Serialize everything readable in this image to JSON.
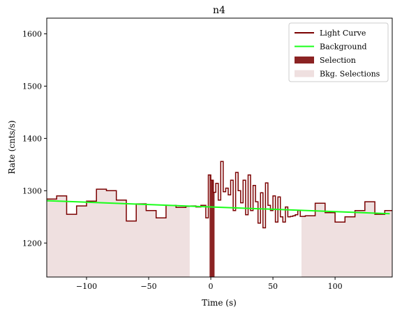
{
  "chart_data": {
    "type": "line",
    "title": "n4",
    "xlabel": "Time (s)",
    "ylabel": "Rate (cnts/s)",
    "xlim": [
      -132,
      146
    ],
    "ylim": [
      1135,
      1630
    ],
    "xticks": [
      -100,
      -50,
      0,
      50,
      100
    ],
    "xtick_labels": [
      "−100",
      "−50",
      "0",
      "50",
      "100"
    ],
    "yticks": [
      1200,
      1300,
      1400,
      1500,
      1600
    ],
    "ytick_labels": [
      "1200",
      "1300",
      "1400",
      "1500",
      "1600"
    ],
    "grid": false,
    "legend_position": "top-right",
    "legend": [
      {
        "label": "Light Curve",
        "kind": "line",
        "color": "#7a0000"
      },
      {
        "label": "Background",
        "kind": "line",
        "color": "#19ff19"
      },
      {
        "label": "Selection",
        "kind": "patch",
        "color": "#8b2323"
      },
      {
        "label": "Bkg. Selections",
        "kind": "patch",
        "color": "#efe0e0"
      }
    ],
    "colors": {
      "light_curve": "#7a0000",
      "background": "#19ff19",
      "selection": "#8b2323",
      "bkg_selection": "#efe0e0"
    },
    "light_curve": {
      "edges": [
        -132,
        -124,
        -116,
        -108,
        -100,
        -92,
        -84,
        -76,
        -68,
        -60,
        -52,
        -44,
        -36,
        -28,
        -20,
        -16,
        -12,
        -8,
        -4,
        -2,
        0,
        2,
        4,
        6,
        8,
        10,
        12,
        14,
        16,
        18,
        20,
        22,
        24,
        26,
        28,
        30,
        32,
        34,
        36,
        38,
        40,
        42,
        44,
        46,
        48,
        50,
        52,
        54,
        56,
        58,
        60,
        62,
        64,
        66,
        68,
        70,
        72,
        76,
        84,
        92,
        100,
        108,
        116,
        124,
        132,
        140,
        146
      ],
      "rates": [
        1284,
        1290,
        1255,
        1271,
        1280,
        1303,
        1300,
        1282,
        1242,
        1275,
        1262,
        1248,
        1272,
        1268,
        1270,
        1271,
        1269,
        1272,
        1248,
        1330,
        1320,
        1297,
        1314,
        1282,
        1356,
        1298,
        1305,
        1292,
        1320,
        1262,
        1335,
        1300,
        1277,
        1320,
        1254,
        1330,
        1262,
        1310,
        1279,
        1238,
        1296,
        1229,
        1315,
        1272,
        1262,
        1290,
        1240,
        1288,
        1250,
        1240,
        1269,
        1250,
        1251,
        1252,
        1254,
        1262,
        1251,
        1252,
        1276,
        1258,
        1240,
        1250,
        1262,
        1279,
        1255,
        1262
      ]
    },
    "background": {
      "x": [
        -132,
        144
      ],
      "y": [
        1281,
        1256
      ]
    },
    "selection": [
      -1,
      3
    ],
    "bkg_selections": [
      [
        -132,
        -17
      ],
      [
        73,
        146
      ]
    ]
  }
}
